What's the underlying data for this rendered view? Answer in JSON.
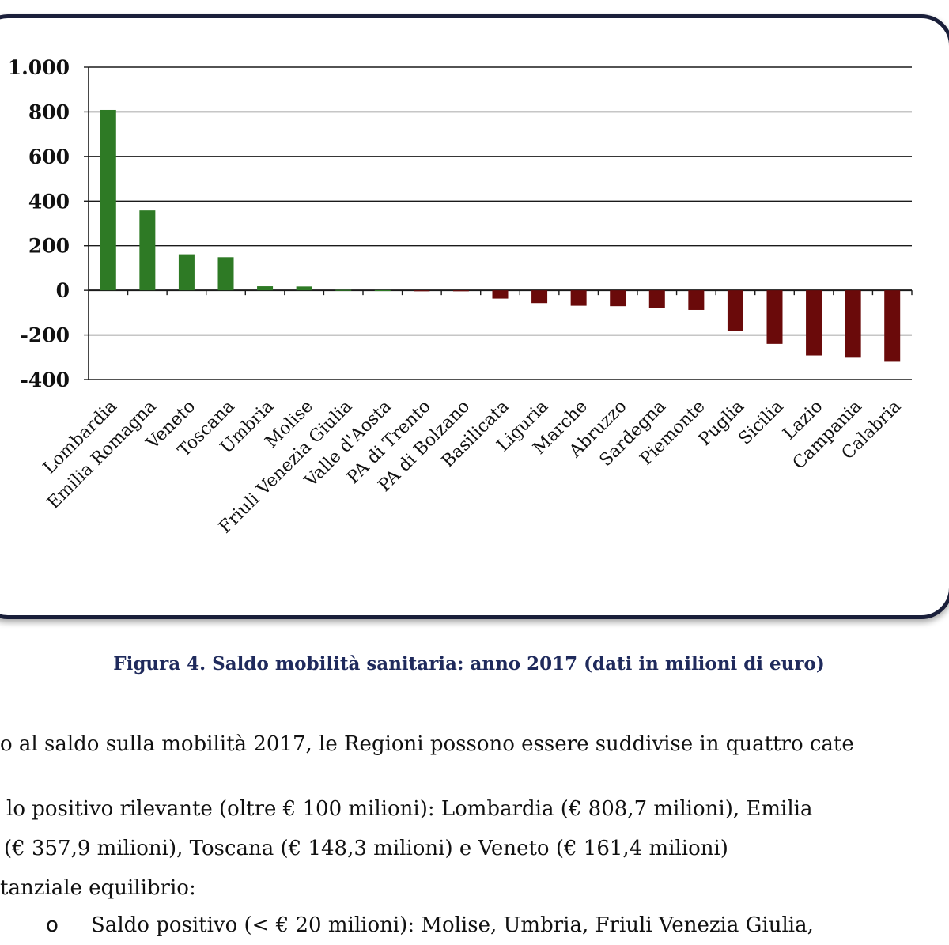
{
  "chart_data": {
    "type": "bar",
    "categories": [
      "Lombardia",
      "Emilia Romagna",
      "Veneto",
      "Toscana",
      "Umbria",
      "Molise",
      "Friuli Venezia Giulia",
      "Valle d'Aosta",
      "PA di Trento",
      "PA di Bolzano",
      "Basilicata",
      "Liguria",
      "Marche",
      "Abruzzo",
      "Sardegna",
      "Piemonte",
      "Puglia",
      "Sicilia",
      "Lazio",
      "Campania",
      "Calabria"
    ],
    "values": [
      808.7,
      357.9,
      161.4,
      148.3,
      18,
      17,
      2,
      1,
      -3,
      -4,
      -37,
      -57,
      -69,
      -71,
      -80,
      -88,
      -181,
      -240,
      -292,
      -302,
      -320
    ],
    "ylim": [
      -400,
      1000
    ],
    "yticks": [
      -400,
      -200,
      0,
      200,
      400,
      600,
      800,
      1000
    ],
    "ytick_labels": [
      "-400",
      "-200",
      "0",
      "200",
      "400",
      "600",
      "800",
      "1.000"
    ],
    "positive_color": "#2e7a25",
    "negative_color": "#6a0a0a",
    "grid": true,
    "title": "",
    "xlabel": "",
    "ylabel": ""
  },
  "caption": "Figura 4. Saldo mobilità sanitaria: anno 2017 (dati in milioni di euro)",
  "text": {
    "line1": "o al saldo sulla mobilità 2017, le Regioni possono essere suddivise in quattro cate",
    "line2": "lo positivo rilevante (oltre € 100 milioni): Lombardia (€ 808,7 milioni), Emilia",
    "line3": "(€ 357,9 milioni), Toscana (€ 148,3 milioni) e Veneto (€ 161,4 milioni)",
    "line4": "tanziale equilibrio:",
    "bullet_symbol": "o",
    "bullet_text": "Saldo positivo (< € 20 milioni): Molise, Umbria, Friuli Venezia Giulia,"
  }
}
